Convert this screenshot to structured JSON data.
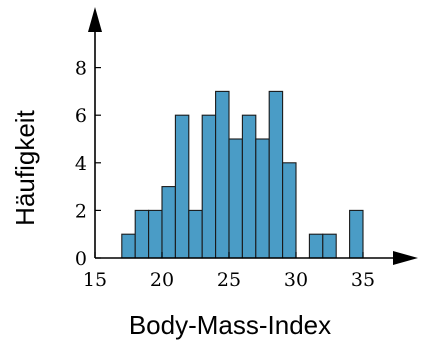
{
  "chart_data": {
    "type": "bar",
    "subtype": "histogram",
    "xlabel": "Body-Mass-Index",
    "ylabel": "Häufigkeit",
    "xlim": [
      15,
      38
    ],
    "ylim": [
      0,
      9
    ],
    "bin_width": 1,
    "x_ticks": [
      15,
      20,
      25,
      30,
      35
    ],
    "y_ticks": [
      0,
      2,
      4,
      6,
      8
    ],
    "bins": [
      {
        "start": 17,
        "count": 1
      },
      {
        "start": 18,
        "count": 2
      },
      {
        "start": 19,
        "count": 2
      },
      {
        "start": 20,
        "count": 3
      },
      {
        "start": 21,
        "count": 6
      },
      {
        "start": 22,
        "count": 2
      },
      {
        "start": 23,
        "count": 6
      },
      {
        "start": 24,
        "count": 7
      },
      {
        "start": 25,
        "count": 5
      },
      {
        "start": 26,
        "count": 6
      },
      {
        "start": 27,
        "count": 5
      },
      {
        "start": 28,
        "count": 7
      },
      {
        "start": 29,
        "count": 4
      },
      {
        "start": 31,
        "count": 1
      },
      {
        "start": 32,
        "count": 1
      },
      {
        "start": 34,
        "count": 2
      }
    ],
    "bar_color": "#4a9cc6",
    "grid": false,
    "legend": "none"
  }
}
